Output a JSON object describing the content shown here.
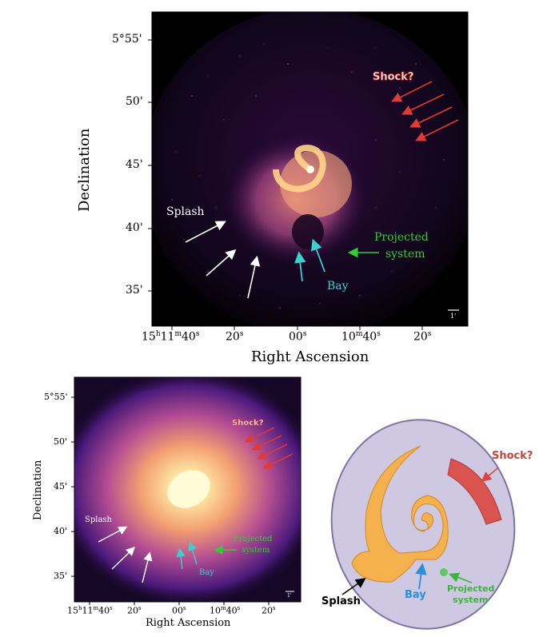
{
  "figure": {
    "top_panel": {
      "xlabel": "Right Ascension",
      "ylabel": "Declination",
      "yticks": [
        "5°55'",
        "50'",
        "45'",
        "40'",
        "35'"
      ],
      "xticks": [
        {
          "main": "15",
          "h": "h",
          "m_val": "11",
          "m": "m",
          "s_val": "40",
          "s": "s"
        },
        {
          "main": "20",
          "s": "s"
        },
        {
          "main": "00",
          "s": "s"
        },
        {
          "main": "10",
          "m": "m",
          "s_val": "40",
          "s": "s"
        },
        {
          "main": "20",
          "s": "s"
        }
      ],
      "scalebar": "1'",
      "annotations": {
        "shock": "Shock?",
        "splash": "Splash",
        "bay": "Bay",
        "projected_line1": "Projected",
        "projected_line2": "system"
      }
    },
    "bottom_left_panel": {
      "xlabel": "Right Ascension",
      "ylabel": "Declination",
      "yticks": [
        "5°55'",
        "50'",
        "45'",
        "40'",
        "35'"
      ],
      "xticks": [
        {
          "main": "15",
          "h": "h",
          "m_val": "11",
          "m": "m",
          "s_val": "40",
          "s": "s"
        },
        {
          "main": "20",
          "s": "s"
        },
        {
          "main": "00",
          "s": "s"
        },
        {
          "main": "10",
          "m": "m",
          "s_val": "40",
          "s": "s"
        },
        {
          "main": "20",
          "s": "s"
        }
      ],
      "scalebar": "1'",
      "annotations": {
        "shock": "Shock?",
        "splash": "Splash",
        "bay": "Bay",
        "projected_line1": "Projected",
        "projected_line2": "system"
      }
    },
    "schematic": {
      "labels": {
        "shock": "Shock?",
        "splash": "Splash",
        "bay": "Bay",
        "projected_line1": "Projected",
        "projected_line2": "system"
      }
    },
    "colors": {
      "shock": "#e03b33",
      "splash": "#ffffff",
      "bay": "#3bd0d0",
      "projected": "#33cc33",
      "schematic_bg": "#cfc8e2",
      "spiral": "#f4b14e",
      "bay_schematic": "#2a8fd8"
    }
  }
}
